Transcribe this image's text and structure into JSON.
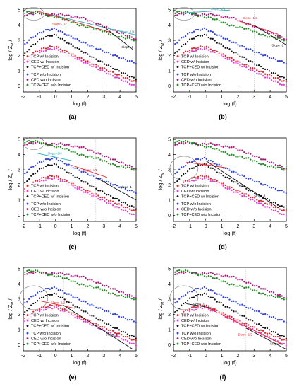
{
  "figure": {
    "axis": {
      "xlabel": "log (f)",
      "ylabel": "log / Z",
      "ylabel_sub": "M",
      "xticks": [
        -2,
        -1,
        0,
        1,
        2,
        3,
        4,
        5
      ],
      "yticks": [
        0,
        1,
        2,
        3,
        4,
        5
      ],
      "xlim": [
        -2,
        5
      ],
      "ylim": [
        -0.4,
        5.1
      ]
    },
    "series_colors": {
      "TCP w/ Incision": "#e8202a",
      "CED w/ Incision": "#e83ad6",
      "TCP+CED w/ Incision": "#111111",
      "TCP w/o Incision": "#2b3ee8",
      "CED w/o Incision": "#b0147a",
      "TCP+CED w/o Incision": "#1e8c1e"
    }
  },
  "chart_data": [
    {
      "type": "scatter",
      "panel_label": "(a)",
      "xlabel": "log (f)",
      "ylabel": "log / Z_M /",
      "xlim": [
        -2,
        5
      ],
      "ylim": [
        -0.4,
        5.1
      ],
      "legend": "lower-left",
      "annotations": [
        {
          "text": "Slope -1/4",
          "color": "#2aa7b8",
          "x": 4.0,
          "y": 3.5
        },
        {
          "text": "Slope -1/2",
          "color": "#e8202a",
          "x": -0.2,
          "y": 4.0
        },
        {
          "text": "Slope -1",
          "color": "#111111",
          "x": 4.1,
          "y": 2.5
        }
      ],
      "fit_lines": [
        {
          "color": "#2aa7b8",
          "x": [
            -0.5,
            5
          ],
          "y": [
            4.75,
            3.35
          ]
        },
        {
          "color": "#e8202a",
          "x": [
            -1.2,
            3.5
          ],
          "y": [
            4.95,
            3.5
          ]
        },
        {
          "color": "#111111",
          "x": [
            3.0,
            4.8
          ],
          "y": [
            3.9,
            2.4
          ]
        }
      ],
      "series": [
        {
          "name": "TCP w/ Incision",
          "peak_x": 0.0,
          "peak_y": 2.6
        },
        {
          "name": "CED w/ Incision",
          "peak_x": 0.0,
          "peak_y": 2.6
        },
        {
          "name": "TCP+CED w/ Incision",
          "peak_x": 0.0,
          "peak_y": 3.4
        },
        {
          "name": "TCP w/o Incision",
          "peak_x": 0.0,
          "peak_y": 3.8
        },
        {
          "name": "CED w/o Incision",
          "peak_x": -1.0,
          "peak_y": 4.8
        },
        {
          "name": "TCP+CED w/o Incision",
          "peak_x": -1.0,
          "peak_y": 4.8
        }
      ]
    },
    {
      "type": "scatter",
      "panel_label": "(b)",
      "xlabel": "log (f)",
      "ylabel": "log / Z_M /",
      "xlim": [
        -2,
        5
      ],
      "ylim": [
        -0.4,
        5.1
      ],
      "legend": "lower-left",
      "annotations": [
        {
          "text": "Slope -1/4",
          "color": "#2aa7b8",
          "x": 0.3,
          "y": 5.0
        },
        {
          "text": "Slope -1/2",
          "color": "#e8202a",
          "x": 2.3,
          "y": 4.4
        },
        {
          "text": "Slope -1",
          "color": "#111111",
          "x": 4.1,
          "y": 2.6
        }
      ],
      "fit_lines": [
        {
          "color": "#2aa7b8",
          "x": [
            -1.5,
            1.5
          ],
          "y": [
            4.8,
            5.0
          ]
        },
        {
          "color": "#e8202a",
          "x": [
            2.0,
            4.5
          ],
          "y": [
            4.3,
            3.4
          ]
        },
        {
          "color": "#111111",
          "x": [
            3.0,
            5.0
          ],
          "y": [
            4.0,
            2.7
          ]
        }
      ],
      "series": [
        {
          "name": "TCP w/ Incision",
          "peak_x": 0.0,
          "peak_y": 2.6
        },
        {
          "name": "CED w/ Incision",
          "peak_x": 0.0,
          "peak_y": 2.6
        },
        {
          "name": "TCP+CED w/ Incision",
          "peak_x": 0.0,
          "peak_y": 3.4
        },
        {
          "name": "TCP w/o Incision",
          "peak_x": 0.0,
          "peak_y": 3.8
        },
        {
          "name": "CED w/o Incision",
          "peak_x": -1.0,
          "peak_y": 4.8
        },
        {
          "name": "TCP+CED w/o Incision",
          "peak_x": -1.0,
          "peak_y": 4.8
        }
      ]
    },
    {
      "type": "scatter",
      "panel_label": "(c)",
      "xlabel": "log (f)",
      "ylabel": "log / Z_M /",
      "xlim": [
        -2,
        5
      ],
      "ylim": [
        -0.4,
        5.1
      ],
      "legend": "lower-left",
      "annotations": [
        {
          "text": "Slope -1/4",
          "color": "#2aa7b8",
          "x": -0.5,
          "y": 4.0
        },
        {
          "text": "Slope -1/2",
          "color": "#e8202a",
          "x": 1.7,
          "y": 2.9
        },
        {
          "text": "Slope -1",
          "color": "#111111",
          "x": 4.0,
          "y": 1.8
        }
      ],
      "fit_lines": [
        {
          "color": "#2aa7b8",
          "x": [
            -1.2,
            1.0
          ],
          "y": [
            4.1,
            3.6
          ]
        },
        {
          "color": "#e8202a",
          "x": [
            1.0,
            3.2
          ],
          "y": [
            3.3,
            2.5
          ]
        },
        {
          "color": "#111111",
          "x": [
            2.5,
            5.0
          ],
          "y": [
            2.5,
            1.0
          ]
        }
      ],
      "series": [
        {
          "name": "TCP w/ Incision",
          "peak_x": 0.0,
          "peak_y": 2.6
        },
        {
          "name": "CED w/ Incision",
          "peak_x": 0.0,
          "peak_y": 2.6
        },
        {
          "name": "TCP+CED w/ Incision",
          "peak_x": 0.0,
          "peak_y": 3.4
        },
        {
          "name": "TCP w/o Incision",
          "peak_x": 0.0,
          "peak_y": 3.8
        },
        {
          "name": "CED w/o Incision",
          "peak_x": -1.0,
          "peak_y": 4.8
        },
        {
          "name": "TCP+CED w/o Incision",
          "peak_x": -1.0,
          "peak_y": 4.8
        }
      ]
    },
    {
      "type": "scatter",
      "panel_label": "(d)",
      "xlabel": "log (f)",
      "ylabel": "log / Z_M /",
      "xlim": [
        -2,
        5
      ],
      "ylim": [
        -0.4,
        5.1
      ],
      "legend": "lower-left",
      "annotations": [
        {
          "text": "Slope -1/2",
          "color": "#e8202a",
          "x": -0.4,
          "y": 3.3
        },
        {
          "text": "Slope -1",
          "color": "#111111",
          "x": 3.0,
          "y": 1.2
        }
      ],
      "fit_lines": [
        {
          "color": "#e8202a",
          "x": [
            -1.2,
            1.5
          ],
          "y": [
            3.5,
            3.1
          ]
        },
        {
          "color": "#111111",
          "x": [
            0.0,
            4.5
          ],
          "y": [
            3.6,
            0.5
          ]
        }
      ],
      "series": [
        {
          "name": "TCP w/ Incision",
          "peak_x": 0.0,
          "peak_y": 2.6
        },
        {
          "name": "CED w/ Incision",
          "peak_x": 0.0,
          "peak_y": 2.6
        },
        {
          "name": "TCP+CED w/ Incision",
          "peak_x": 0.0,
          "peak_y": 3.4
        },
        {
          "name": "TCP w/o Incision",
          "peak_x": 0.0,
          "peak_y": 3.8
        },
        {
          "name": "CED w/o Incision",
          "peak_x": -1.0,
          "peak_y": 4.8
        },
        {
          "name": "TCP+CED w/o Incision",
          "peak_x": -1.0,
          "peak_y": 4.8
        }
      ]
    },
    {
      "type": "scatter",
      "panel_label": "(e)",
      "xlabel": "log (f)",
      "ylabel": "log / Z_M /",
      "xlim": [
        -2,
        5
      ],
      "ylim": [
        -0.4,
        5.1
      ],
      "legend": "lower-left",
      "annotations": [
        {
          "text": "Slope -1/2",
          "color": "#e8202a",
          "x": -0.3,
          "y": 2.7
        },
        {
          "text": "Slope -1",
          "color": "#111111",
          "x": 3.1,
          "y": 0.6
        }
      ],
      "fit_lines": [
        {
          "color": "#e8202a",
          "x": [
            -1.0,
            1.2
          ],
          "y": [
            2.9,
            2.4
          ]
        },
        {
          "color": "#111111",
          "x": [
            0.5,
            4.8
          ],
          "y": [
            2.6,
            -0.3
          ]
        }
      ],
      "series": [
        {
          "name": "TCP w/ Incision",
          "peak_x": 0.0,
          "peak_y": 2.6
        },
        {
          "name": "CED w/ Incision",
          "peak_x": 0.0,
          "peak_y": 2.6
        },
        {
          "name": "TCP+CED w/ Incision",
          "peak_x": 0.0,
          "peak_y": 3.4
        },
        {
          "name": "TCP w/o Incision",
          "peak_x": 0.0,
          "peak_y": 3.8
        },
        {
          "name": "CED w/o Incision",
          "peak_x": -1.0,
          "peak_y": 4.8
        },
        {
          "name": "TCP+CED w/o Incision",
          "peak_x": -1.0,
          "peak_y": 4.8
        }
      ]
    },
    {
      "type": "scatter",
      "panel_label": "(f)",
      "xlabel": "log (f)",
      "ylabel": "log / Z_M /",
      "xlim": [
        -2,
        5
      ],
      "ylim": [
        -0.4,
        5.1
      ],
      "legend": "lower-left",
      "annotations": [
        {
          "text": "Slope -1",
          "color": "#111111",
          "x": -0.8,
          "y": 2.6
        },
        {
          "text": "Slope -1/2",
          "color": "#e8202a",
          "x": 2.0,
          "y": 0.6
        },
        {
          "text": "Slope -1",
          "color": "#111111",
          "x": 4.0,
          "y": 0.0
        }
      ],
      "fit_lines": [
        {
          "color": "#111111",
          "x": [
            -1.2,
            0.5
          ],
          "y": [
            2.7,
            2.4
          ]
        },
        {
          "color": "#e8202a",
          "x": [
            0.0,
            4.8
          ],
          "y": [
            2.5,
            0.0
          ]
        },
        {
          "color": "#111111",
          "x": [
            2.5,
            5.0
          ],
          "y": [
            1.1,
            -0.3
          ]
        }
      ],
      "series": [
        {
          "name": "TCP w/ Incision",
          "peak_x": 0.0,
          "peak_y": 2.6
        },
        {
          "name": "CED w/ Incision",
          "peak_x": 0.0,
          "peak_y": 2.6
        },
        {
          "name": "TCP+CED w/ Incision",
          "peak_x": 0.0,
          "peak_y": 3.4
        },
        {
          "name": "TCP w/o Incision",
          "peak_x": 0.0,
          "peak_y": 3.8
        },
        {
          "name": "CED w/o Incision",
          "peak_x": -1.0,
          "peak_y": 4.8
        },
        {
          "name": "TCP+CED w/o Incision",
          "peak_x": -1.0,
          "peak_y": 4.8
        }
      ]
    }
  ]
}
